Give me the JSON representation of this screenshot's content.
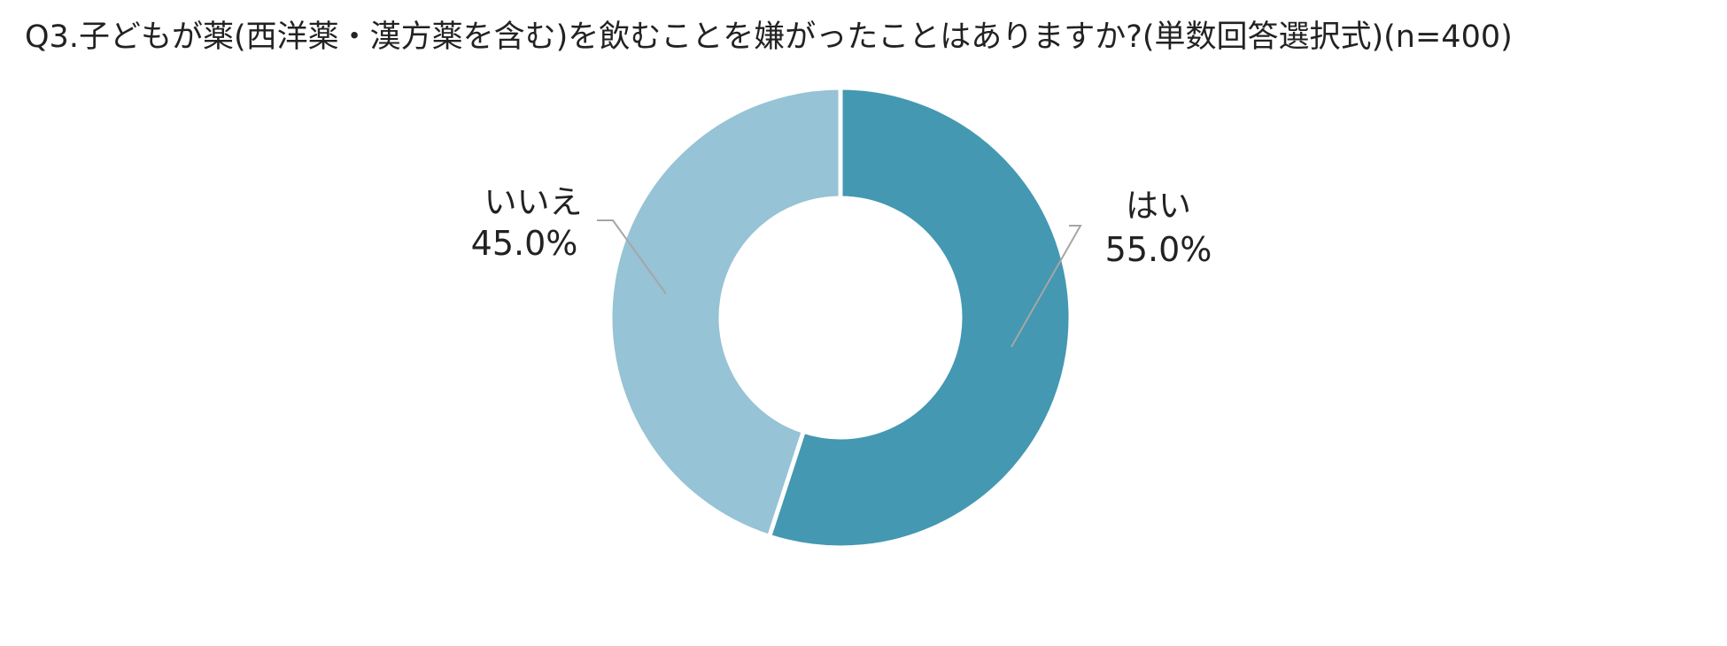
{
  "chart_data": {
    "type": "pie",
    "variant": "donut",
    "title": "Q3.子どもが薬(西洋薬・漢方薬を含む)を飲むことを嫌がったことはありますか?(単数回答選択式)(n=400)",
    "slices": [
      {
        "label": "はい",
        "value": 55.0,
        "display": "55.0%",
        "color": "#4498B1"
      },
      {
        "label": "いいえ",
        "value": 45.0,
        "display": "45.0%",
        "color": "#96C3D5"
      }
    ],
    "start_angle_deg": 0,
    "direction": "clockwise",
    "legend": "none",
    "label_style": "outside-with-leader-lines"
  }
}
